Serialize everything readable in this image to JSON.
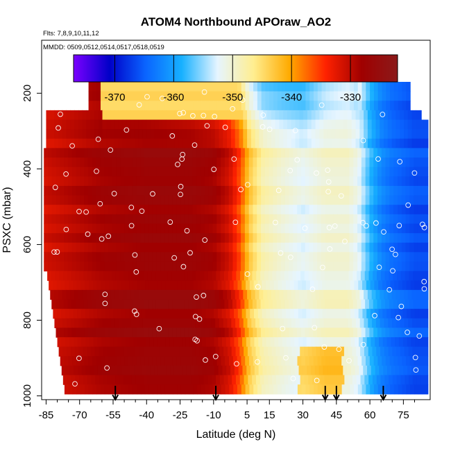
{
  "chart_data": {
    "type": "heatmap",
    "title": "ATOM4 Northbound APOraw_AO2",
    "flights_label": "Flts: 7,8,9,10,11,12",
    "dates_label": "MMDD: 0509,0512,0514,0517,0518,0519",
    "xlabel": "Latitude (deg N)",
    "ylabel": "PSXC (mbar)",
    "xlim": [
      -87,
      87
    ],
    "ylim": [
      1010,
      60
    ],
    "x_ticks": [
      -85,
      -70,
      -55,
      -40,
      -25,
      -10,
      5,
      15,
      30,
      45,
      60,
      75
    ],
    "y_ticks": [
      200,
      400,
      600,
      800,
      1000
    ],
    "colorbar": {
      "range": [
        -377,
        -322
      ],
      "ticks": [
        -370,
        -360,
        -350,
        -340,
        -330
      ],
      "tick_labels": [
        "-370",
        "-360",
        "-350",
        "-340",
        "-330"
      ],
      "colors": [
        "#7b00ff",
        "#0000c8",
        "#0a64ff",
        "#17b0ff",
        "#e6f5ff",
        "#ffee90",
        "#ffaa00",
        "#ff2200",
        "#a00000",
        "#8b1a1a"
      ]
    },
    "field_profile": {
      "lat": [
        -85,
        -60,
        -40,
        -20,
        -10,
        -3,
        2,
        6,
        12,
        20,
        30,
        40,
        50,
        55,
        60,
        65,
        70,
        80
      ],
      "value": [
        -331,
        -328,
        -327,
        -327,
        -328,
        -331,
        -336,
        -343,
        -348,
        -350,
        -352,
        -350,
        -350,
        -352,
        -358,
        -362,
        -364,
        -366
      ]
    },
    "arrows_lat": [
      -54,
      -9,
      40,
      45,
      66
    ]
  }
}
